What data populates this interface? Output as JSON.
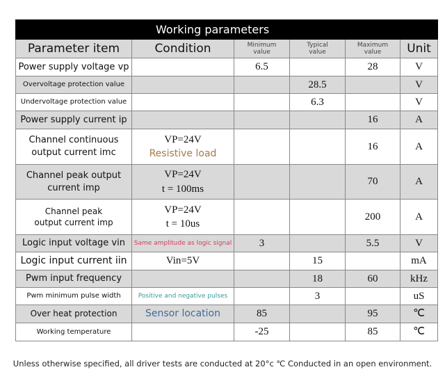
{
  "table": {
    "title": "Working parameters",
    "header": [
      "Parameter item",
      "Condition",
      [
        "Minimum",
        "value"
      ],
      [
        "Typical",
        "value"
      ],
      [
        "Maximum",
        "value"
      ],
      "Unit"
    ],
    "rows": [
      [
        "Power supply voltage vp",
        null,
        "6.5",
        null,
        "28",
        "V"
      ],
      [
        "Overvoltage protection value",
        null,
        null,
        "28.5",
        null,
        "V"
      ],
      [
        "Undervoltage protection value",
        null,
        null,
        "6.3",
        null,
        "V"
      ],
      [
        "Power supply current ip",
        null,
        null,
        null,
        "16",
        "A"
      ],
      [
        [
          "Channel continuous",
          "output current imc"
        ],
        [
          "VP=24V",
          "Resistive load"
        ],
        null,
        null,
        "16",
        "A"
      ],
      [
        [
          "Channel peak output",
          "current imp"
        ],
        [
          "VP=24V",
          "t = 100ms"
        ],
        null,
        null,
        "70",
        "A"
      ],
      [
        [
          "Channel peak",
          "output current imp"
        ],
        [
          "VP=24V",
          "t = 10us"
        ],
        null,
        null,
        "200",
        "A"
      ],
      [
        "Logic input voltage vin",
        "Same amplitude as logic signal",
        "3",
        null,
        "5.5",
        "V"
      ],
      [
        "Logic input current iin",
        "Vin=5V",
        null,
        "15",
        null,
        "mA"
      ],
      [
        "Pwm input frequency",
        null,
        null,
        "18",
        "60",
        "kHz"
      ],
      [
        "Pwm minimum pulse width",
        "Positive and negative pulses",
        null,
        "3",
        null,
        "uS"
      ],
      [
        "Over heat protection",
        "Sensor location",
        "85",
        null,
        "95",
        "℃"
      ],
      [
        "Working temperature",
        null,
        "-25",
        null,
        "85",
        "℃"
      ]
    ],
    "footnote": "Unless otherwise specified, all driver tests are conducted at 20°c ℃ Conducted in an open environment."
  }
}
